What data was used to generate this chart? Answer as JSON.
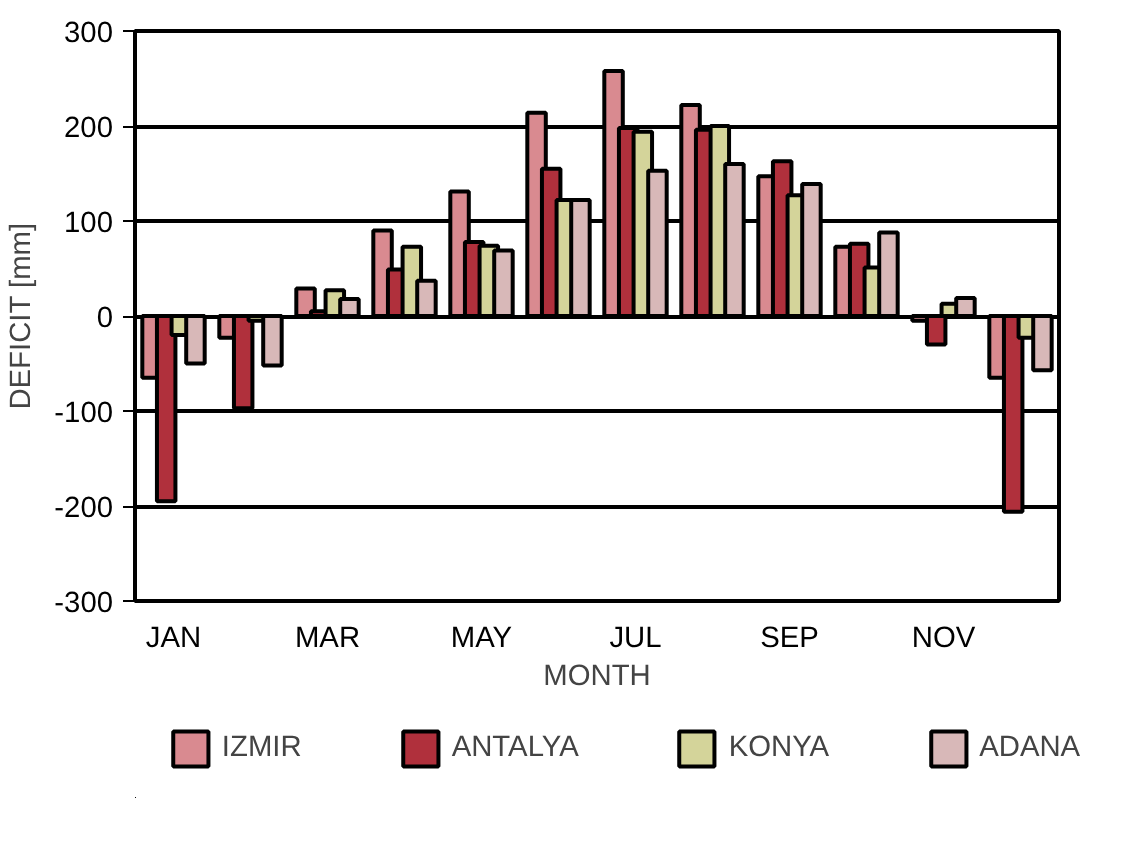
{
  "chart_data": {
    "type": "bar",
    "xlabel": "MONTH",
    "ylabel": "DEFICIT [mm]",
    "categories": [
      "JAN",
      null,
      "MAR",
      null,
      "MAY",
      null,
      "JUL",
      null,
      "SEP",
      null,
      "NOV",
      null
    ],
    "series": [
      {
        "name": "IZMIR",
        "color": "#d98a90",
        "values": [
          -65,
          -23,
          29,
          90,
          131,
          214,
          258,
          222,
          147,
          73,
          -5,
          -65
        ]
      },
      {
        "name": "ANTALYA",
        "color": "#b0303c",
        "values": [
          -195,
          -97,
          5,
          49,
          78,
          155,
          198,
          196,
          163,
          76,
          -30,
          -206
        ]
      },
      {
        "name": "KONYA",
        "color": "#d4d49a",
        "values": [
          -20,
          -5,
          27,
          73,
          74,
          122,
          194,
          200,
          127,
          51,
          13,
          -23
        ]
      },
      {
        "name": "ADANA",
        "color": "#d8b8b8",
        "values": [
          -50,
          -52,
          18,
          37,
          69,
          122,
          153,
          160,
          139,
          88,
          19,
          -57
        ]
      }
    ],
    "ylim": [
      -300,
      300
    ],
    "yticks": [
      -300,
      -200,
      -100,
      0,
      100,
      200,
      300
    ],
    "grid": "y",
    "legend": "bottom"
  }
}
